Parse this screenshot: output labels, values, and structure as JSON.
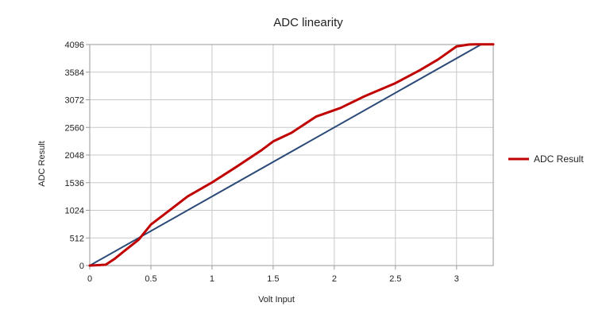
{
  "chart_data": {
    "type": "line",
    "title": "ADC linearity",
    "xlabel": "Volt Input",
    "ylabel": "ADC Result",
    "xlim": [
      0,
      3.3
    ],
    "ylim": [
      0,
      4096
    ],
    "x_ticks": [
      0,
      0.5,
      1,
      1.5,
      2,
      2.5,
      3
    ],
    "x_tick_labels": [
      "0",
      "0.5",
      "1",
      "1.5",
      "2",
      "2.5",
      "3"
    ],
    "y_ticks": [
      0,
      512,
      1024,
      1536,
      2048,
      2560,
      3072,
      3584,
      4096
    ],
    "y_tick_labels": [
      "0",
      "512",
      "1024",
      "1536",
      "2048",
      "2560",
      "3072",
      "3584",
      "4096"
    ],
    "grid": true,
    "legend_position": "right",
    "series": [
      {
        "name": "",
        "color": "#2c4a78",
        "x": [
          0,
          3.2
        ],
        "y": [
          0,
          4096
        ]
      },
      {
        "name": "ADC Result",
        "color": "#c00000",
        "x": [
          0.0,
          0.13,
          0.2,
          0.3,
          0.4,
          0.5,
          0.65,
          0.8,
          1.0,
          1.2,
          1.4,
          1.5,
          1.65,
          1.85,
          2.05,
          2.25,
          2.5,
          2.7,
          2.85,
          3.0,
          3.1,
          3.15,
          3.2,
          3.3
        ],
        "y": [
          0,
          15,
          120,
          300,
          480,
          760,
          1020,
          1280,
          1540,
          1830,
          2130,
          2300,
          2460,
          2760,
          2920,
          3140,
          3380,
          3620,
          3820,
          4060,
          4096,
          4100,
          4100,
          4100
        ]
      }
    ]
  }
}
